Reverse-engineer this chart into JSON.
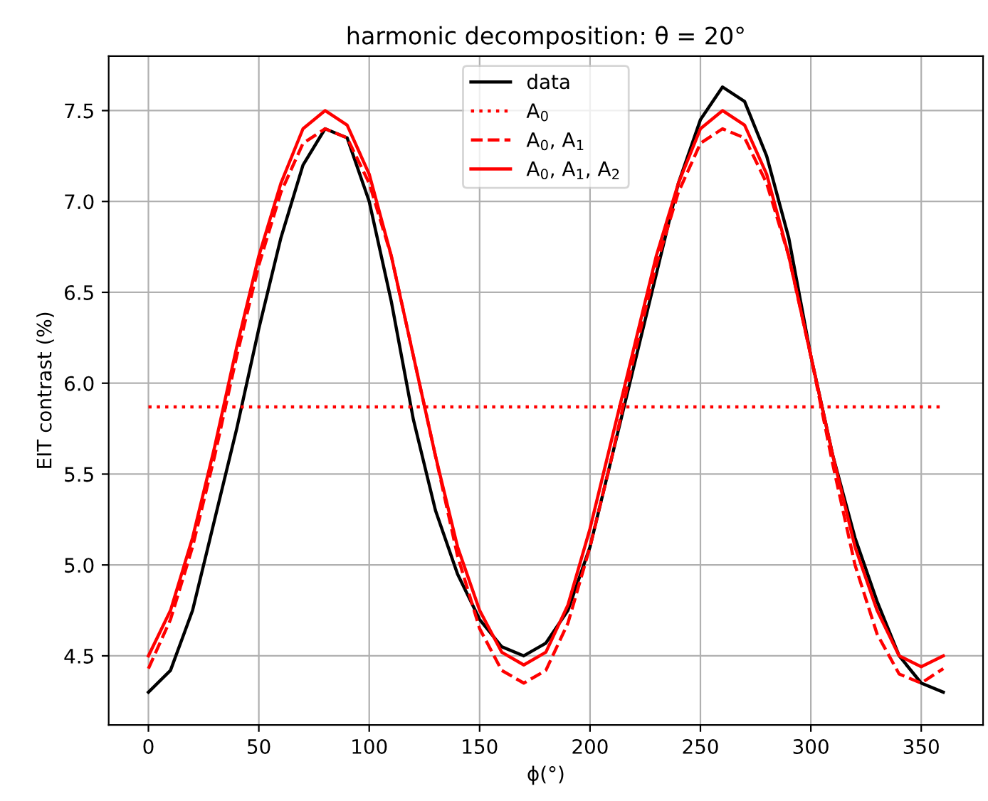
{
  "chart_data": {
    "type": "line",
    "title": "harmonic decomposition: θ = 20°",
    "xlabel": "ϕ(°)",
    "ylabel": "EIT contrast (%)",
    "x": [
      0,
      10,
      20,
      30,
      40,
      50,
      60,
      70,
      80,
      90,
      100,
      110,
      120,
      130,
      140,
      150,
      160,
      170,
      180,
      190,
      200,
      210,
      220,
      230,
      240,
      250,
      260,
      270,
      280,
      290,
      300,
      310,
      320,
      330,
      340,
      350,
      360
    ],
    "series": [
      {
        "name": "data",
        "color": "#000000",
        "line_style": "solid",
        "values": [
          4.3,
          4.42,
          4.75,
          5.25,
          5.75,
          6.3,
          6.8,
          7.2,
          7.4,
          7.35,
          7.0,
          6.45,
          5.8,
          5.3,
          4.95,
          4.7,
          4.55,
          4.5,
          4.57,
          4.75,
          5.1,
          5.6,
          6.1,
          6.6,
          7.1,
          7.45,
          7.63,
          7.55,
          7.25,
          6.8,
          6.15,
          5.6,
          5.15,
          4.8,
          4.5,
          4.35,
          4.3
        ]
      },
      {
        "name": "A$_{0}$",
        "color": "#ff0000",
        "line_style": "dotted",
        "x": [
          0,
          360
        ],
        "values": [
          5.87,
          5.87
        ]
      },
      {
        "name": "A$_{0}$, A$_{1}$",
        "color": "#ff0000",
        "line_style": "dashed",
        "values": [
          4.43,
          4.7,
          5.1,
          5.6,
          6.15,
          6.65,
          7.05,
          7.32,
          7.4,
          7.35,
          7.1,
          6.7,
          6.15,
          5.6,
          5.05,
          4.65,
          4.42,
          4.35,
          4.42,
          4.68,
          5.1,
          5.6,
          6.15,
          6.65,
          7.05,
          7.32,
          7.4,
          7.35,
          7.1,
          6.7,
          6.15,
          5.55,
          5.0,
          4.62,
          4.4,
          4.35,
          4.43
        ]
      },
      {
        "name": "A$_{0}$, A$_{1}$, A$_{2}$",
        "color": "#ff0000",
        "line_style": "solid",
        "values": [
          4.5,
          4.75,
          5.15,
          5.65,
          6.2,
          6.7,
          7.1,
          7.4,
          7.5,
          7.42,
          7.15,
          6.7,
          6.15,
          5.6,
          5.1,
          4.75,
          4.52,
          4.45,
          4.52,
          4.78,
          5.2,
          5.7,
          6.2,
          6.7,
          7.1,
          7.4,
          7.5,
          7.42,
          7.15,
          6.7,
          6.15,
          5.6,
          5.1,
          4.75,
          4.5,
          4.44,
          4.5
        ]
      }
    ],
    "xlim": [
      -18,
      378
    ],
    "xticks": [
      0,
      50,
      100,
      150,
      200,
      250,
      300,
      350
    ],
    "ylim": [
      4.12,
      7.8
    ],
    "yticks": [
      4.5,
      {
        "value": 5,
        "label": "5.0"
      },
      5.5,
      {
        "value": 6,
        "label": "6.0"
      },
      6.5,
      {
        "value": 7,
        "label": "7.0"
      },
      7.5
    ],
    "grid": true,
    "legend": "top center",
    "marker": "none"
  }
}
